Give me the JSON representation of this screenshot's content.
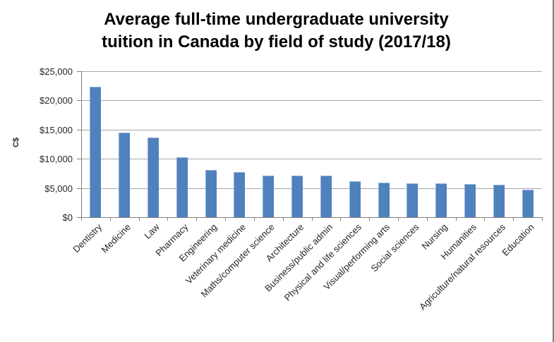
{
  "chart_data": {
    "type": "bar",
    "title": "Average full-time undergraduate university tuition in Canada by field of study (2017/18)",
    "title_lines": [
      "Average full-time undergraduate university",
      "tuition in Canada by field of study (2017/18)"
    ],
    "ylabel": "C$",
    "xlabel": "",
    "legend": "none",
    "grid": true,
    "ylim": [
      0,
      25000
    ],
    "categories": [
      "Dentistry",
      "Medicine",
      "Law",
      "Pharmacy",
      "Engineering",
      "Veterinary medicine",
      "Maths/computer science",
      "Architecture",
      "Business/public admin",
      "Physical and life sciences",
      "Visual/performing arts",
      "Social sciences",
      "Nursing",
      "Humanities",
      "Agriculture/natural resources",
      "Education"
    ],
    "values": [
      22300,
      14450,
      13650,
      10300,
      8100,
      7700,
      7150,
      7120,
      7100,
      6100,
      5900,
      5780,
      5750,
      5620,
      5600,
      4700
    ],
    "y_ticks": [
      {
        "value": 0,
        "label": "$0"
      },
      {
        "value": 5000,
        "label": "$5,000"
      },
      {
        "value": 10000,
        "label": "$10,000"
      },
      {
        "value": 15000,
        "label": "$15,000"
      },
      {
        "value": 20000,
        "label": "$20,000"
      },
      {
        "value": 25000,
        "label": "$25,000"
      }
    ],
    "colors": {
      "bar": "#4F81BD",
      "bar_highlight": "#95B3D7",
      "gridline": "#A6A6A6",
      "axis": "#808080",
      "text": "#262626",
      "title": "#000000",
      "background": "#FFFFFF",
      "right_edge": "#808080"
    }
  }
}
